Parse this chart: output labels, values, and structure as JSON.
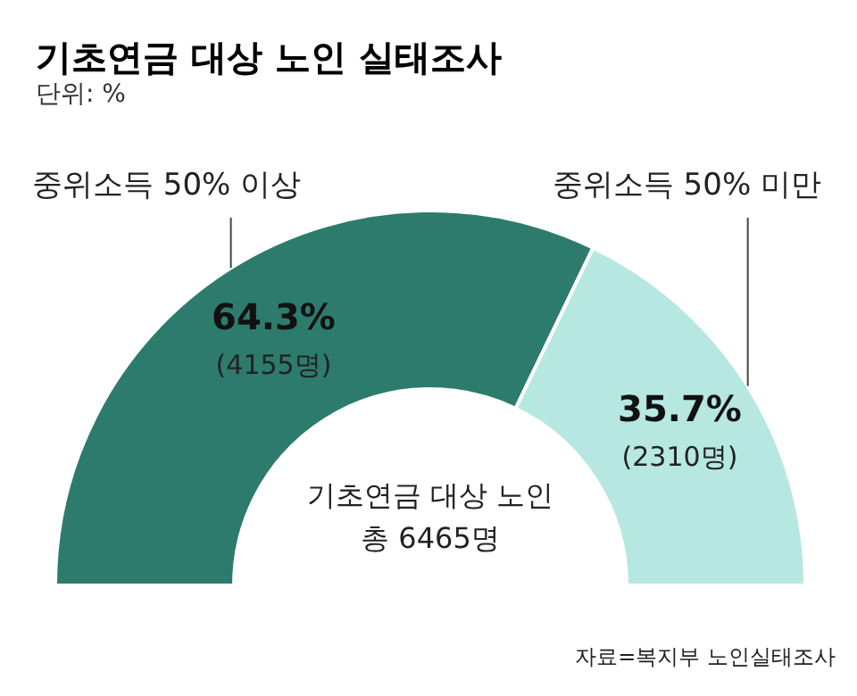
{
  "chart_data": {
    "type": "donut",
    "title": "기초연금 대상 노인 실태조사",
    "subtitle": "단위: %",
    "categories": [
      "중위소득 50% 이상",
      "중위소득 50% 미만"
    ],
    "values": [
      64.3,
      35.7
    ],
    "colors": [
      "#2d7b6c",
      "#b6e8e1"
    ],
    "value_labels": [
      "64.3%",
      "35.7%"
    ],
    "annotations": [
      {
        "text": "(4155명)",
        "x": "중위소득 50% 이상"
      },
      {
        "text": "(2310명)",
        "x": "중위소득 50% 미만"
      },
      "기초연금 대상 노인",
      "총 6465명",
      "자료=복지부 노인실태조사"
    ]
  }
}
